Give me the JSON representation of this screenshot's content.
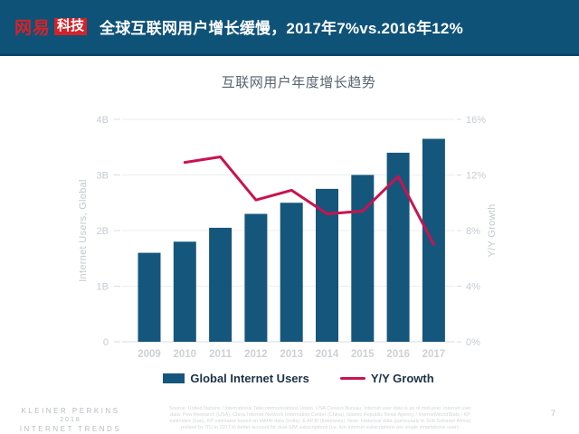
{
  "header": {
    "logo_text": "网易",
    "logo_badge": "科技",
    "title": "全球互联网用户增长缓慢，2017年7%vs.2016年12%"
  },
  "chart": {
    "title": "互联网用户年度增长趋势",
    "left_axis_title": "Internet Users, Global",
    "right_axis_title": "Y/Y Growth",
    "legend_bar_label": "Global Internet Users",
    "legend_line_label": "Y/Y Growth"
  },
  "chart_data": {
    "type": "bar",
    "title": "互联网用户年度增长趋势",
    "categories": [
      "2009",
      "2010",
      "2011",
      "2012",
      "2013",
      "2014",
      "2015",
      "2016",
      "2017"
    ],
    "series": [
      {
        "name": "Global Internet Users",
        "type": "bar",
        "axis": "left",
        "unit": "billions",
        "values": [
          1.6,
          1.8,
          2.05,
          2.3,
          2.5,
          2.75,
          3.0,
          3.4,
          3.65
        ]
      },
      {
        "name": "Y/Y Growth",
        "type": "line",
        "axis": "right",
        "unit": "%",
        "values": [
          null,
          12.9,
          13.3,
          10.2,
          10.9,
          9.2,
          9.4,
          11.9,
          7.0
        ]
      }
    ],
    "left_axis": {
      "label": "Internet Users, Global",
      "ticks": [
        "0",
        "1B",
        "2B",
        "3B",
        "4B"
      ],
      "range": [
        0,
        4
      ]
    },
    "right_axis": {
      "label": "Y/Y Growth",
      "ticks": [
        "0%",
        "4%",
        "8%",
        "12%",
        "16%"
      ],
      "range": [
        0,
        16
      ]
    },
    "legend_position": "bottom",
    "grid": true,
    "colors": {
      "bar": "#15567C",
      "line": "#C9134F",
      "grid": "#EDEEEF",
      "tick_text": "#C7CCD1",
      "x_text": "#CDD1D4"
    }
  },
  "footer": {
    "brand_line1": "KLEINER PERKINS",
    "brand_line2": "2018",
    "brand_line3": "INTERNET TRENDS",
    "source_lines": [
      "Source: United Nations / International Telecommunications Union, USA Census Bureau. Internet user data is as of mid-year. Internet user",
      "data: Pew Research (USA), China Internet Network Information Center (China), Islamic Republic News Agency / InternetWorldStats / KP",
      "estimates (Iran), KP estimates based on IAMAI data (India), & APJII (Indonesia). Note: Historical data (particularly in Sub-Saharan Africa)",
      "revised by ITU in 2017 to better account for dual-SIM subscriptions (i.e. live Internet subscriptions per single smartphone user)."
    ],
    "page_number": "7"
  }
}
